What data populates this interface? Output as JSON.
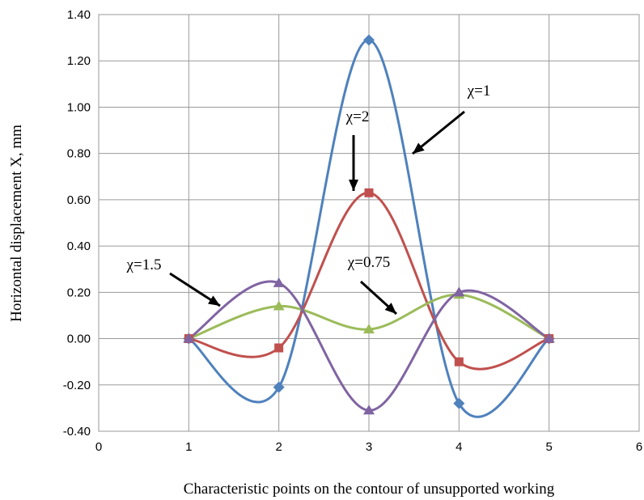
{
  "chart_data": {
    "type": "line",
    "xlabel": "Characteristic points on the contour of unsupported working",
    "ylabel": "Horizontal displacement X, mm",
    "xlim": [
      0,
      6
    ],
    "ylim": [
      -0.4,
      1.4
    ],
    "x_ticks": [
      "0",
      "1",
      "2",
      "3",
      "4",
      "5",
      "6"
    ],
    "y_ticks": [
      "-0.40",
      "-0.20",
      "0.00",
      "0.20",
      "0.40",
      "0.60",
      "0.80",
      "1.00",
      "1.20",
      "1.40"
    ],
    "grid": true,
    "smooth": true,
    "series": [
      {
        "name": "χ=1",
        "color": "#4f81bd",
        "marker": "diamond",
        "x": [
          1,
          2,
          3,
          4,
          5
        ],
        "y": [
          0.0,
          -0.21,
          1.29,
          -0.28,
          0.0
        ]
      },
      {
        "name": "χ=2",
        "color": "#c0504d",
        "marker": "square",
        "x": [
          1,
          2,
          3,
          4,
          5
        ],
        "y": [
          0.0,
          -0.04,
          0.63,
          -0.1,
          0.0
        ]
      },
      {
        "name": "χ=0.75",
        "color": "#9bbb59",
        "marker": "triangle",
        "x": [
          1,
          2,
          3,
          4,
          5
        ],
        "y": [
          0.0,
          0.14,
          0.04,
          0.19,
          0.0
        ]
      },
      {
        "name": "χ=1.5",
        "color": "#8064a2",
        "marker": "triangle",
        "x": [
          1,
          2,
          3,
          4,
          5
        ],
        "y": [
          0.0,
          0.24,
          -0.31,
          0.2,
          0.0
        ]
      }
    ],
    "annotations": [
      {
        "text": "χ=1",
        "series": "χ=1"
      },
      {
        "text": "χ=2",
        "series": "χ=2"
      },
      {
        "text": "χ=0.75",
        "series": "χ=0.75"
      },
      {
        "text": "χ=1.5",
        "series": "χ=1.5"
      }
    ]
  }
}
